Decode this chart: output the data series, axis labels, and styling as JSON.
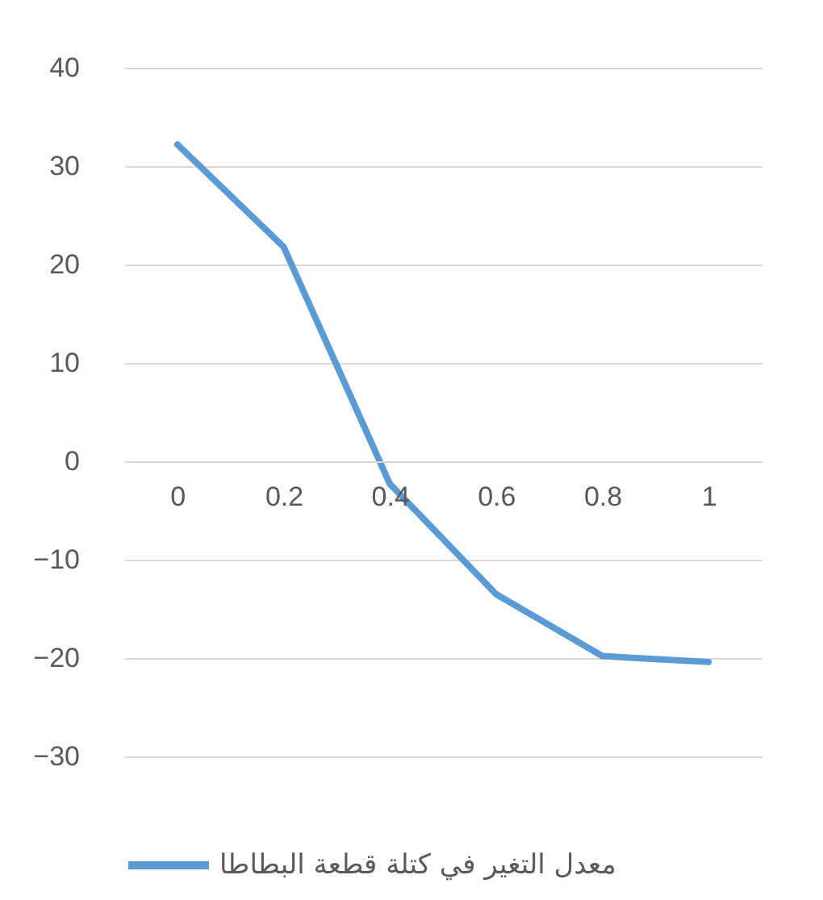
{
  "chart_data": {
    "type": "line",
    "categories": [
      "0",
      "0.2",
      "0.4",
      "0.6",
      "0.8",
      "1"
    ],
    "series": [
      {
        "name": "معدل التغير في كتلة قطعة البطاطا",
        "color": "#5b9bd5",
        "values": [
          32.2,
          21.8,
          -2.3,
          -13.5,
          -19.8,
          -20.4
        ]
      }
    ],
    "ylim": [
      -30,
      40
    ],
    "yticks": [
      -30,
      -20,
      -10,
      0,
      10,
      20,
      30,
      40
    ],
    "grid": "y",
    "legend": "bottom",
    "marker": "none",
    "line_style": "solid"
  }
}
